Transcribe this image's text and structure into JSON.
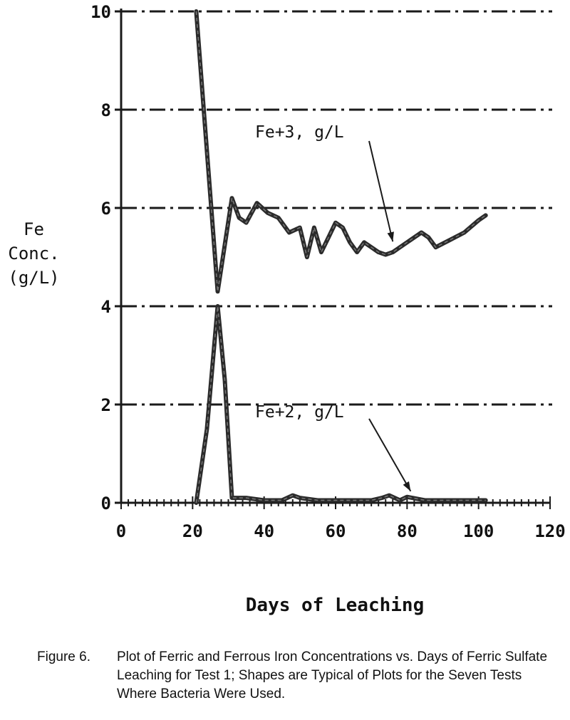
{
  "chart_data": {
    "type": "line",
    "xlabel": "Days of Leaching",
    "ylabel_lines": [
      "Fe",
      "Conc.",
      "(g/L)"
    ],
    "xlim": [
      0,
      120
    ],
    "ylim": [
      0,
      10
    ],
    "xticks": [
      "0",
      "20",
      "40",
      "60",
      "80",
      "100",
      "120"
    ],
    "yticks": [
      "0",
      "2",
      "4",
      "6",
      "8",
      "10"
    ],
    "grid": "horizontal dash-dot",
    "series": [
      {
        "name": "Fe+3, g/L",
        "x": [
          21,
          27,
          31,
          33,
          35,
          38,
          41,
          44,
          47,
          50,
          52,
          54,
          56,
          58,
          60,
          62,
          64,
          66,
          68,
          70,
          72,
          74,
          76,
          78,
          80,
          82,
          84,
          86,
          88,
          92,
          96,
          100,
          102
        ],
        "y": [
          10.0,
          4.3,
          6.2,
          5.8,
          5.7,
          6.1,
          5.9,
          5.8,
          5.5,
          5.6,
          5.0,
          5.6,
          5.1,
          5.4,
          5.7,
          5.6,
          5.3,
          5.1,
          5.3,
          5.2,
          5.1,
          5.05,
          5.1,
          5.2,
          5.3,
          5.4,
          5.5,
          5.4,
          5.2,
          5.35,
          5.5,
          5.75,
          5.85
        ]
      },
      {
        "name": "Fe+2, g/L",
        "x": [
          21,
          24,
          27,
          29,
          31,
          35,
          40,
          45,
          48,
          50,
          55,
          60,
          65,
          70,
          73,
          75,
          78,
          80,
          85,
          90,
          95,
          100,
          102
        ],
        "y": [
          0.0,
          1.5,
          4.0,
          2.5,
          0.1,
          0.1,
          0.05,
          0.05,
          0.15,
          0.1,
          0.05,
          0.05,
          0.05,
          0.05,
          0.1,
          0.15,
          0.05,
          0.12,
          0.05,
          0.05,
          0.05,
          0.05,
          0.05
        ]
      }
    ],
    "annotations": [
      {
        "text": "Fe+3, g/L",
        "target": [
          76,
          5.2
        ]
      },
      {
        "text": "Fe+2, g/L",
        "target": [
          81,
          0.12
        ]
      }
    ]
  },
  "caption": {
    "label": "Figure 6.",
    "text": "Plot of Ferric and Ferrous Iron Concentrations vs. Days of Ferric Sulfate Leaching for Test 1; Shapes are Typical of Plots for the Seven Tests Where Bacteria Were Used."
  },
  "colors": {
    "ink": "#1a1a1a",
    "series_stroke": "#2b2b2b",
    "series_highlight": "#9a9a9a"
  }
}
